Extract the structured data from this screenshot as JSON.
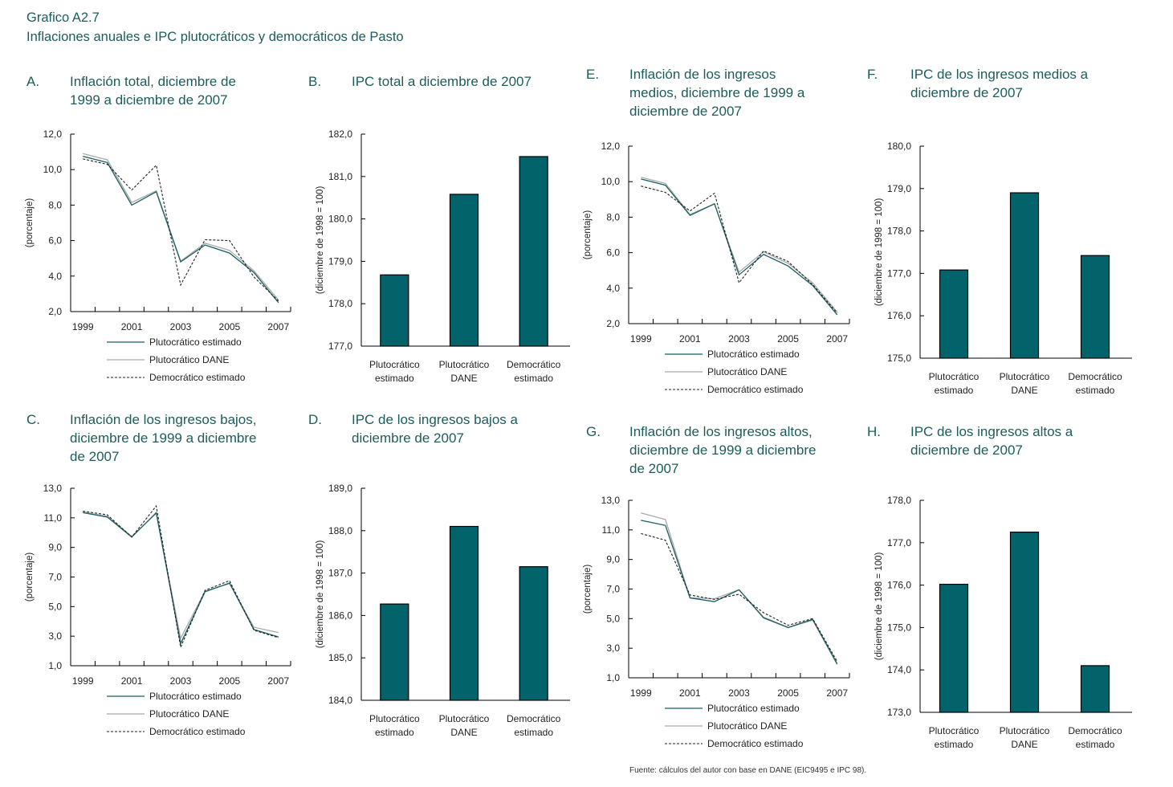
{
  "figure": {
    "label": "Grafico A2.7",
    "title": "Inflaciones anuales e IPC plutocráticos y democráticos de Pasto",
    "source": "Fuente: cálculos del autor con base en DANE (EIC9495 e IPC 98).",
    "colors": {
      "title": "#1d5c5c",
      "bar": "#02646a",
      "estimado": "#1b5f63",
      "dane": "#a9a9a9",
      "democratico": "#222222"
    }
  },
  "panels": {
    "A": {
      "letter": "A.",
      "title": "Inflación total, diciembre de\n1999 a diciembre de 2007"
    },
    "B": {
      "letter": "B.",
      "title": "IPC total a diciembre de 2007"
    },
    "C": {
      "letter": "C.",
      "title": "Inflación de los ingresos bajos,\ndiciembre de 1999 a diciembre\nde 2007"
    },
    "D": {
      "letter": "D.",
      "title": "IPC de los ingresos bajos a\ndiciembre de 2007"
    },
    "E": {
      "letter": "E.",
      "title": "Inflación de los ingresos\nmedios, diciembre de 1999 a\ndiciembre de 2007"
    },
    "F": {
      "letter": "F.",
      "title": "IPC de los ingresos medios a\ndiciembre de 2007"
    },
    "G": {
      "letter": "G.",
      "title": "Inflación de los ingresos altos,\ndiciembre de 1999 a diciembre\nde 2007"
    },
    "H": {
      "letter": "H.",
      "title": "IPC de los ingresos altos a\ndiciembre de 2007"
    }
  },
  "chart_data": [
    {
      "id": "A",
      "type": "line",
      "title": "Inflación total, diciembre de 1999 a diciembre de 2007",
      "xlabel": "",
      "ylabel": "(porcentaje)",
      "x": [
        1999,
        2000,
        2001,
        2002,
        2003,
        2004,
        2005,
        2006,
        2007
      ],
      "xtick_labels": [
        "1999",
        "2001",
        "2003",
        "2005",
        "2007"
      ],
      "ylim": [
        2,
        12
      ],
      "yticks": [
        2,
        4,
        6,
        8,
        10,
        12
      ],
      "ytick_labels": [
        "2,0",
        "4,0",
        "6,0",
        "8,0",
        "10,0",
        "12,0"
      ],
      "legend": "bottom",
      "series": [
        {
          "name": "Plutocrático estimado",
          "style": "solid-teal",
          "values": [
            10.75,
            10.4,
            8.0,
            8.75,
            4.8,
            5.75,
            5.3,
            4.2,
            2.5
          ]
        },
        {
          "name": "Plutocrático DANE",
          "style": "solid-gray",
          "values": [
            10.9,
            10.55,
            8.15,
            8.8,
            4.85,
            5.85,
            5.45,
            4.3,
            2.65
          ]
        },
        {
          "name": "Democrático estimado",
          "style": "dashed-black",
          "values": [
            10.6,
            10.3,
            8.85,
            10.25,
            3.5,
            6.05,
            6.0,
            3.95,
            2.6
          ]
        }
      ]
    },
    {
      "id": "B",
      "type": "bar",
      "title": "IPC total a diciembre de 2007",
      "ylabel": "(diciembre de 1998 = 100)",
      "categories": [
        "Plutocrático\nestimado",
        "Plutocrático\nDANE",
        "Democrático\nestimado"
      ],
      "values": [
        178.68,
        180.58,
        181.47
      ],
      "ylim": [
        177,
        182
      ],
      "yticks": [
        177,
        178,
        179,
        180,
        181,
        182
      ],
      "ytick_labels": [
        "177,0",
        "178,0",
        "179,0",
        "180,0",
        "181,0",
        "182,0"
      ]
    },
    {
      "id": "C",
      "type": "line",
      "title": "Inflación de los ingresos bajos, diciembre de 1999 a diciembre de 2007",
      "xlabel": "",
      "ylabel": "(porcentaje)",
      "x": [
        1999,
        2000,
        2001,
        2002,
        2003,
        2004,
        2005,
        2006,
        2007
      ],
      "xtick_labels": [
        "1999",
        "2001",
        "2003",
        "2005",
        "2007"
      ],
      "ylim": [
        1,
        13
      ],
      "yticks": [
        1,
        3,
        5,
        7,
        9,
        11,
        13
      ],
      "ytick_labels": [
        "1,0",
        "3,0",
        "5,0",
        "7,0",
        "9,0",
        "11,0",
        "13,0"
      ],
      "legend": "bottom",
      "series": [
        {
          "name": "Plutocrático estimado",
          "style": "solid-teal",
          "values": [
            11.35,
            11.05,
            9.7,
            11.35,
            2.5,
            6.0,
            6.6,
            3.45,
            2.95
          ]
        },
        {
          "name": "Plutocrático DANE",
          "style": "solid-gray",
          "values": [
            11.4,
            11.1,
            9.75,
            11.3,
            2.85,
            6.05,
            6.55,
            3.6,
            3.25
          ]
        },
        {
          "name": "Democrático estimado",
          "style": "dashed-black",
          "values": [
            11.45,
            11.2,
            9.7,
            11.8,
            2.25,
            6.1,
            6.75,
            3.4,
            2.9
          ]
        }
      ]
    },
    {
      "id": "D",
      "type": "bar",
      "title": "IPC de los ingresos bajos a diciembre de 2007",
      "ylabel": "(diciembre de 1998 = 100)",
      "categories": [
        "Plutocrático\nestimado",
        "Plutocrático\nDANE",
        "Democrático\nestimado"
      ],
      "values": [
        186.27,
        188.1,
        187.15
      ],
      "ylim": [
        184,
        189
      ],
      "yticks": [
        184,
        185,
        186,
        187,
        188,
        189
      ],
      "ytick_labels": [
        "184,0",
        "185,0",
        "186,0",
        "187,0",
        "188,0",
        "189,0"
      ]
    },
    {
      "id": "E",
      "type": "line",
      "title": "Inflación de los ingresos medios, diciembre de 1999 a diciembre de 2007",
      "xlabel": "",
      "ylabel": "(porcentaje)",
      "x": [
        1999,
        2000,
        2001,
        2002,
        2003,
        2004,
        2005,
        2006,
        2007
      ],
      "xtick_labels": [
        "1999",
        "2001",
        "2003",
        "2005",
        "2007"
      ],
      "ylim": [
        2,
        12
      ],
      "yticks": [
        2,
        4,
        6,
        8,
        10,
        12
      ],
      "ytick_labels": [
        "2,0",
        "4,0",
        "6,0",
        "8,0",
        "10,0",
        "12,0"
      ],
      "legend": "bottom",
      "series": [
        {
          "name": "Plutocrático estimado",
          "style": "solid-teal",
          "values": [
            10.15,
            9.8,
            8.1,
            8.75,
            4.75,
            5.9,
            5.25,
            4.15,
            2.5
          ]
        },
        {
          "name": "Plutocrático DANE",
          "style": "solid-gray",
          "values": [
            10.25,
            9.9,
            8.15,
            8.75,
            4.9,
            6.05,
            5.4,
            4.3,
            2.65
          ]
        },
        {
          "name": "Democrático estimado",
          "style": "dashed-black",
          "values": [
            9.75,
            9.4,
            8.35,
            9.35,
            4.3,
            6.1,
            5.5,
            4.2,
            2.6
          ]
        }
      ]
    },
    {
      "id": "F",
      "type": "bar",
      "title": "IPC de los ingresos medios a diciembre de 2007",
      "ylabel": "(diciembre de 1998 = 100)",
      "categories": [
        "Plutocrático\nestimado",
        "Plutocrático\nDANE",
        "Democrático\nestimado"
      ],
      "values": [
        177.08,
        178.9,
        177.42
      ],
      "ylim": [
        175,
        180
      ],
      "yticks": [
        175,
        176,
        177,
        178,
        179,
        180
      ],
      "ytick_labels": [
        "175,0",
        "176,0",
        "177,0",
        "178,0",
        "179,0",
        "180,0"
      ]
    },
    {
      "id": "G",
      "type": "line",
      "title": "Inflación de los ingresos altos, diciembre de 1999 a diciembre de 2007",
      "xlabel": "",
      "ylabel": "(porcentaje)",
      "x": [
        1999,
        2000,
        2001,
        2002,
        2003,
        2004,
        2005,
        2006,
        2007
      ],
      "xtick_labels": [
        "1999",
        "2001",
        "2003",
        "2005",
        "2007"
      ],
      "ylim": [
        1,
        13
      ],
      "yticks": [
        1,
        3,
        5,
        7,
        9,
        11,
        13
      ],
      "ytick_labels": [
        "1,0",
        "3,0",
        "5,0",
        "7,0",
        "9,0",
        "11,0",
        "13,0"
      ],
      "legend": "bottom",
      "series": [
        {
          "name": "Plutocrático estimado",
          "style": "solid-teal",
          "values": [
            11.65,
            11.3,
            6.4,
            6.15,
            6.95,
            5.05,
            4.4,
            4.95,
            1.95
          ]
        },
        {
          "name": "Plutocrático DANE",
          "style": "solid-gray",
          "values": [
            12.15,
            11.7,
            6.4,
            6.35,
            6.95,
            5.1,
            4.4,
            4.9,
            1.9
          ]
        },
        {
          "name": "Democrático estimado",
          "style": "dashed-black",
          "values": [
            10.75,
            10.3,
            6.6,
            6.3,
            6.65,
            5.4,
            4.55,
            5.0,
            2.1
          ]
        }
      ]
    },
    {
      "id": "H",
      "type": "bar",
      "title": "IPC de los ingresos altos a diciembre de 2007",
      "ylabel": "(diciembre de 1998 = 100)",
      "categories": [
        "Plutocrático\nestimado",
        "Plutocrático\nDANE",
        "Democrático\nestimado"
      ],
      "values": [
        176.02,
        177.25,
        174.1
      ],
      "ylim": [
        173,
        178
      ],
      "yticks": [
        173,
        174,
        175,
        176,
        177,
        178
      ],
      "ytick_labels": [
        "173,0",
        "174,0",
        "175,0",
        "176,0",
        "177,0",
        "178,0"
      ]
    }
  ]
}
